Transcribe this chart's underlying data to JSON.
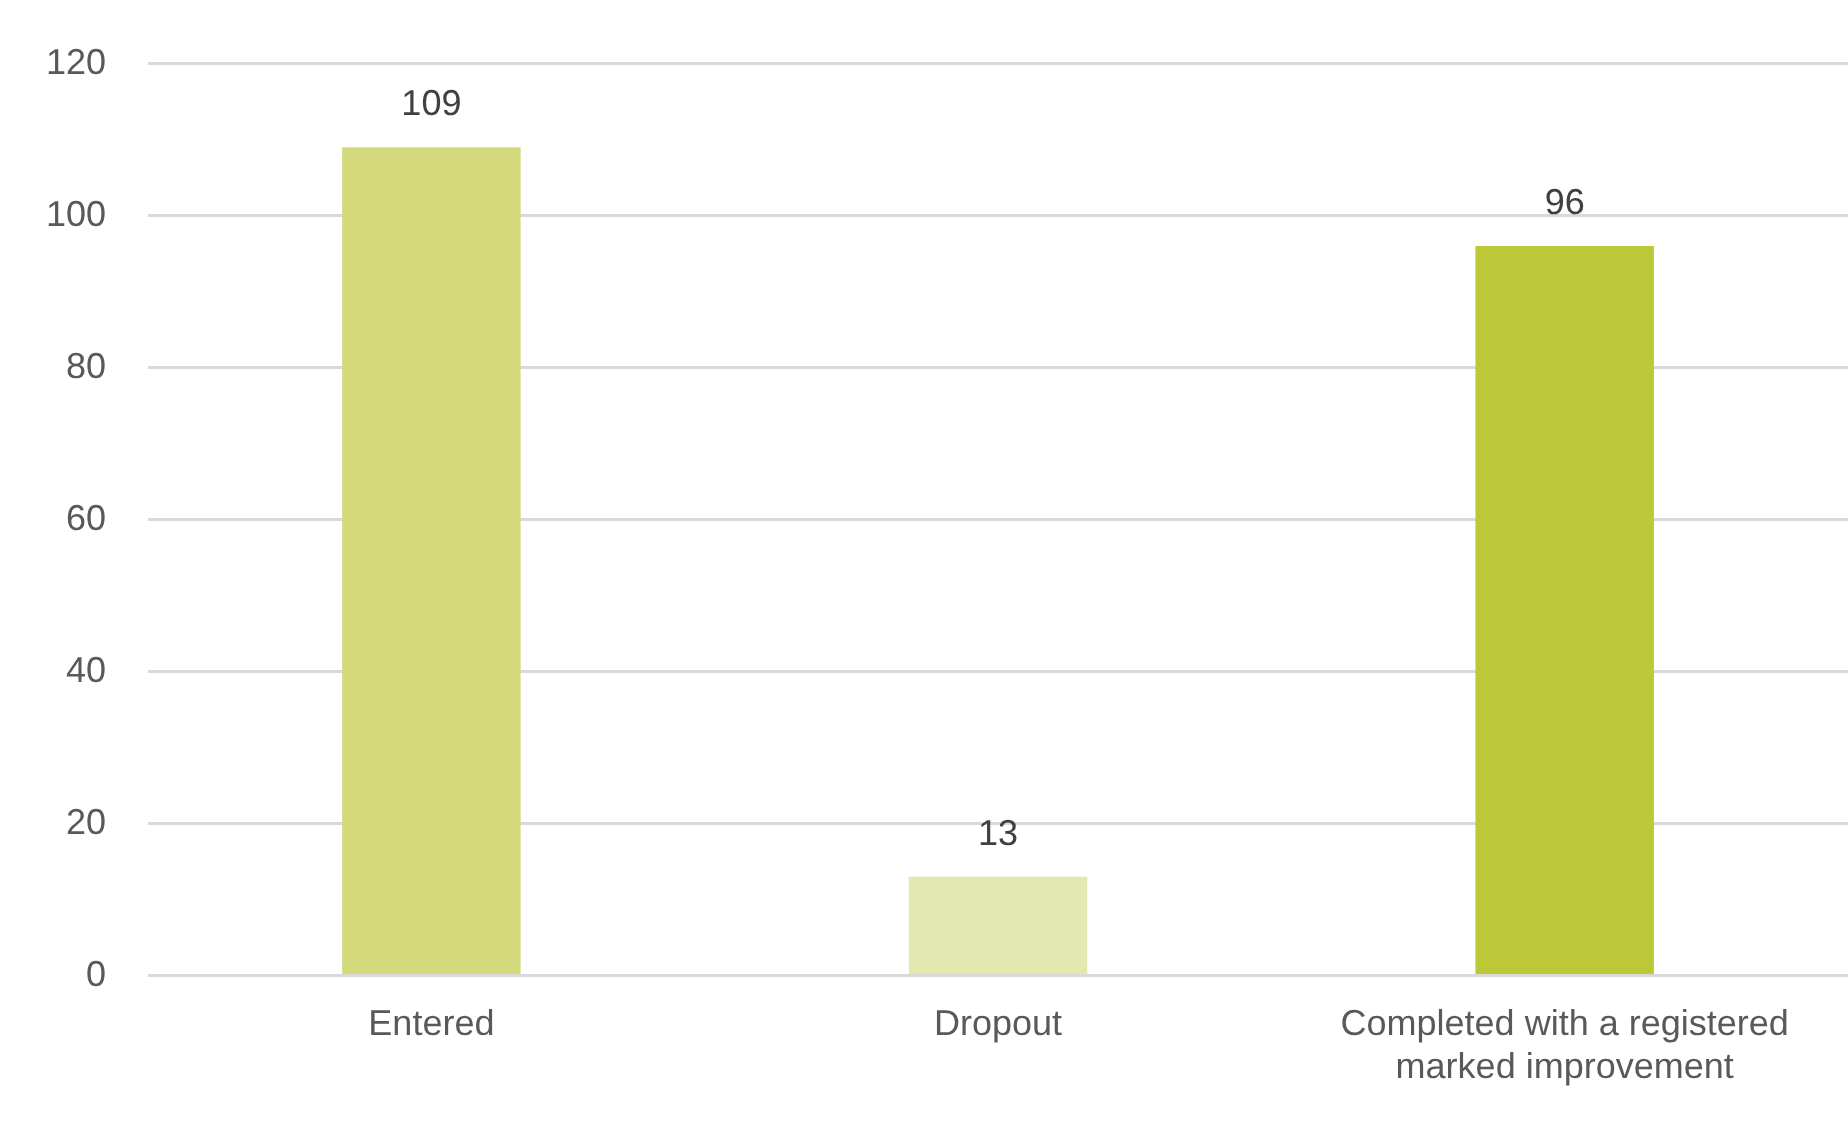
{
  "chart_data": {
    "type": "bar",
    "categories": [
      "Entered",
      "Dropout",
      "Completed with a registered marked improvement"
    ],
    "values": [
      109,
      13,
      96
    ],
    "colors": [
      "#d4da7c",
      "#e2e8b0",
      "#bdc838"
    ],
    "ylim": [
      0,
      120
    ],
    "yticks": [
      0,
      20,
      40,
      60,
      80,
      100,
      120
    ],
    "grid": "y",
    "data_labels": true
  }
}
